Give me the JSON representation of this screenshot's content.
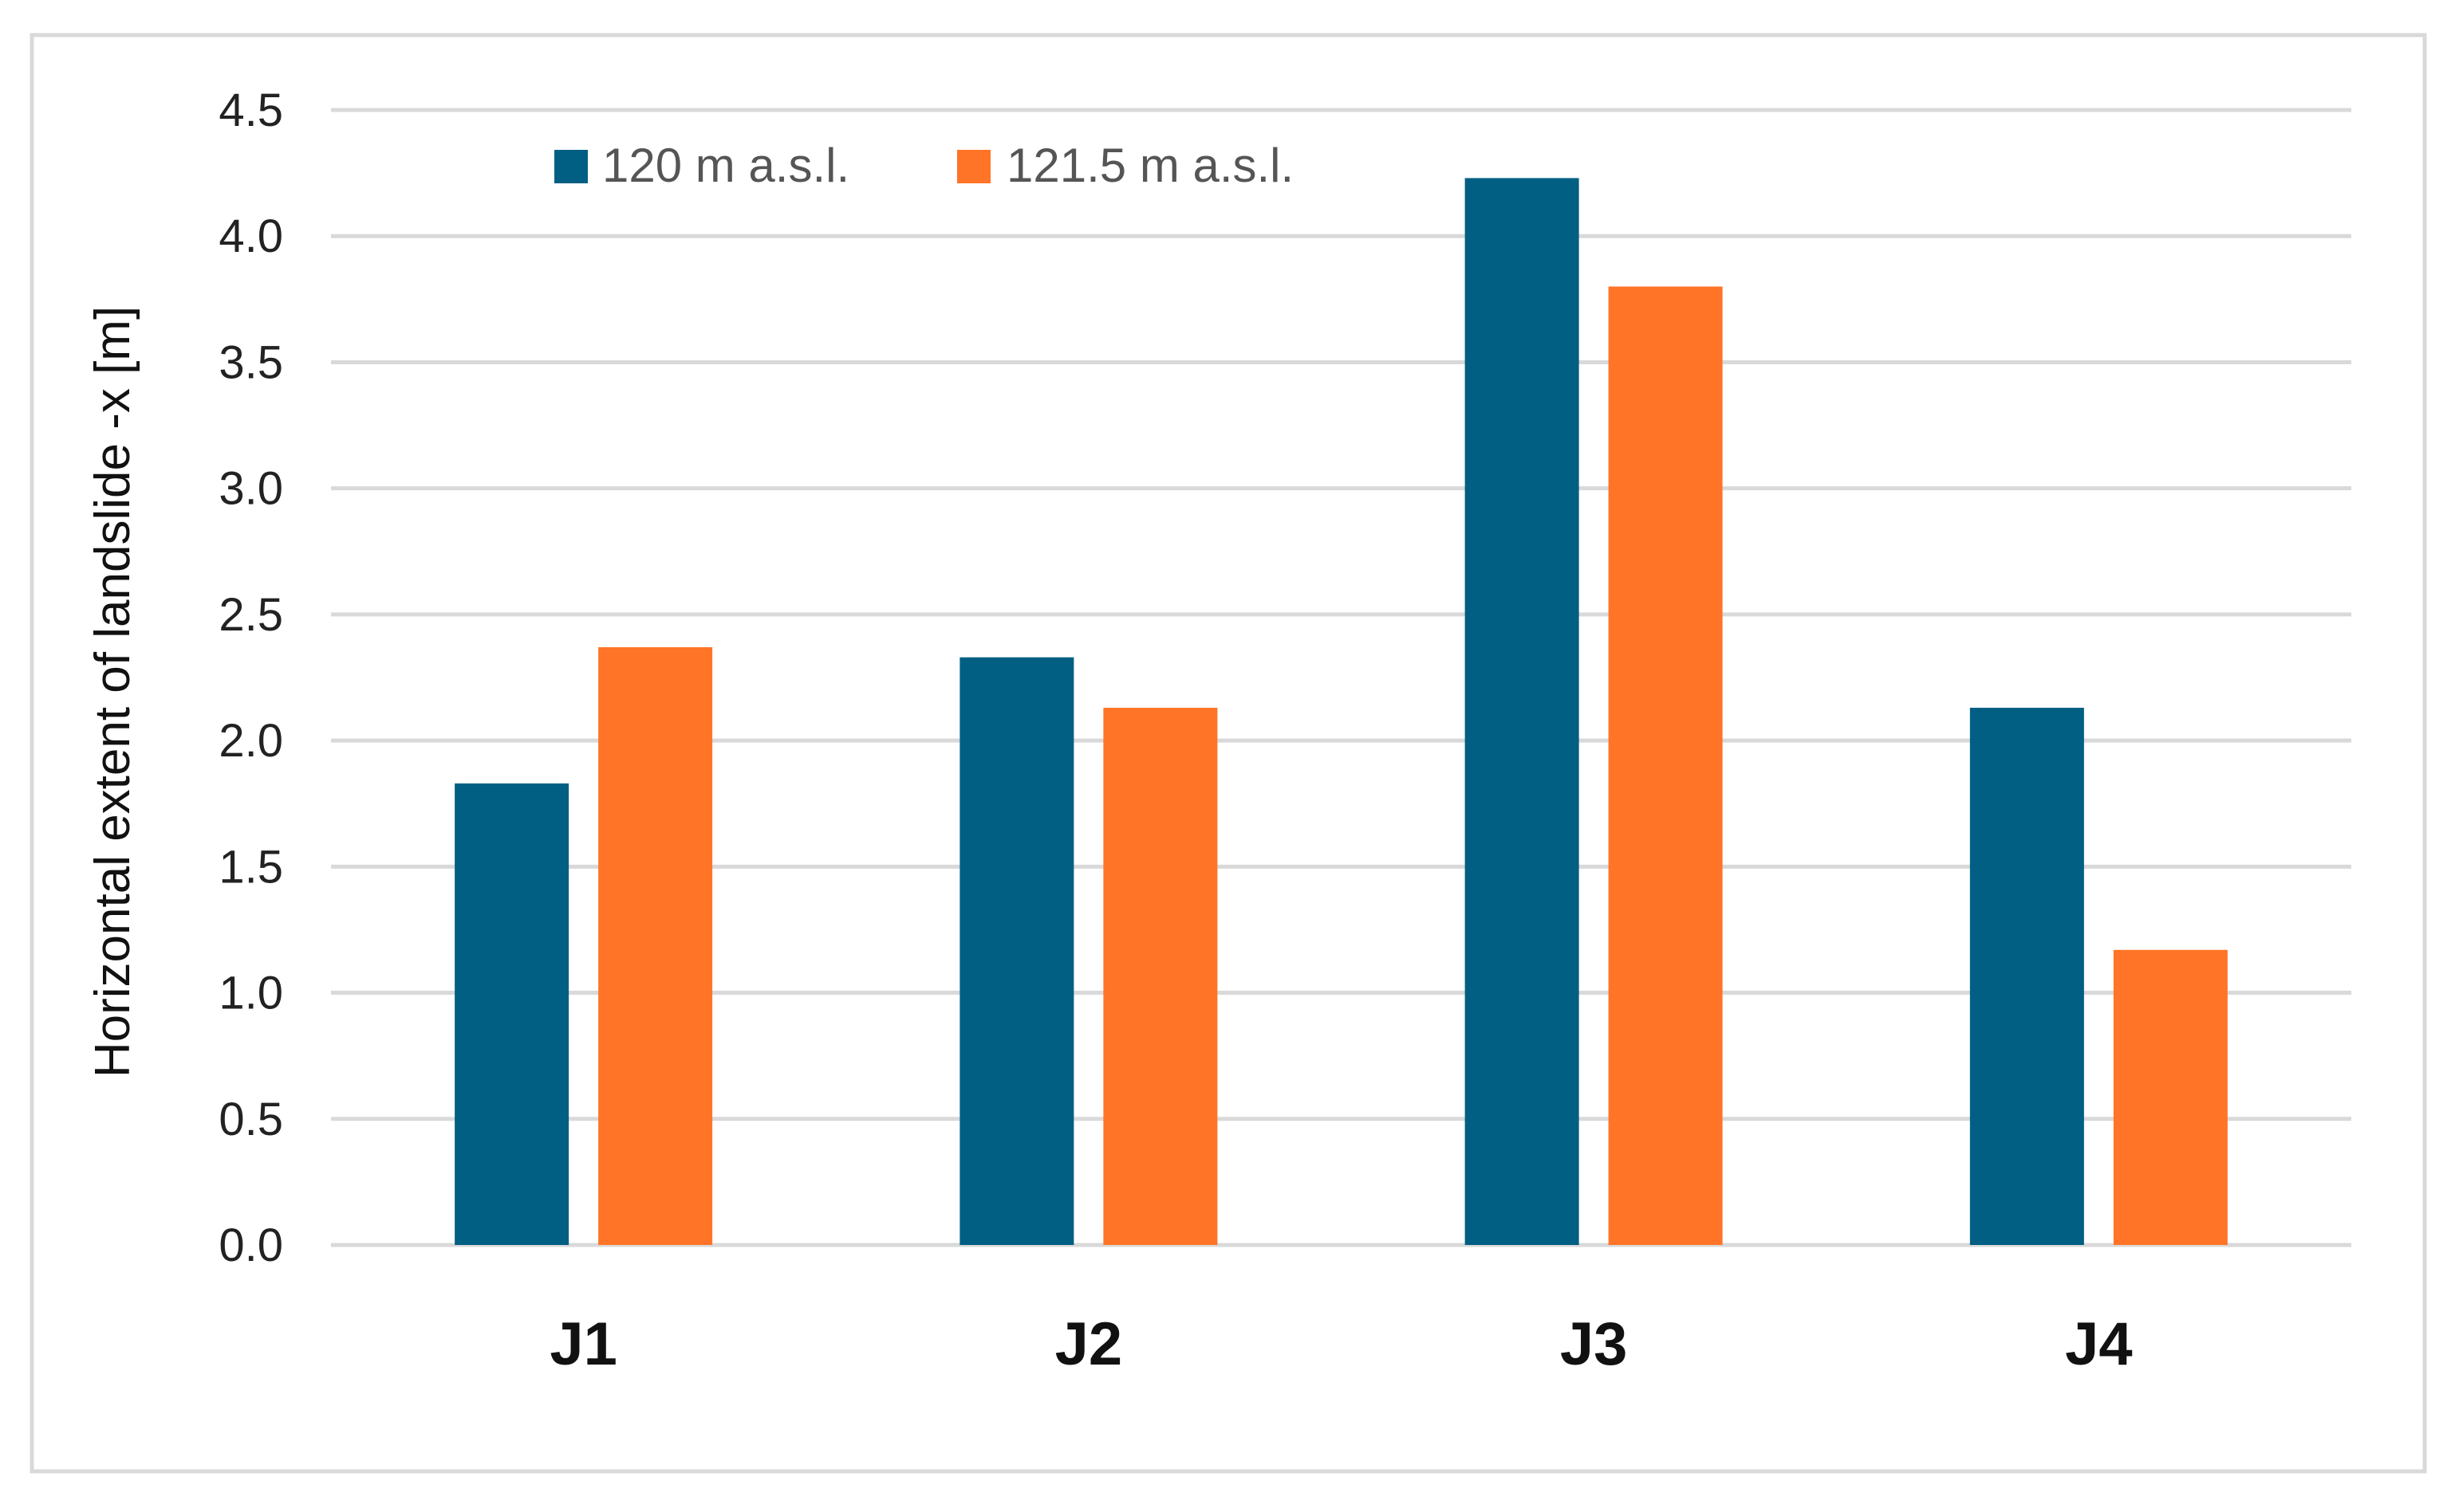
{
  "chart_data": {
    "type": "bar",
    "title": "",
    "xlabel": "",
    "ylabel": "Horizontal extent of landslide -x [m]",
    "categories": [
      "J1",
      "J2",
      "J3",
      "J4"
    ],
    "series": [
      {
        "name": "120 m a.s.l.",
        "color": "#005f83",
        "values": [
          1.83,
          2.33,
          4.23,
          2.13
        ]
      },
      {
        "name": "121.5 m a.s.l.",
        "color": "#ff7427",
        "values": [
          2.37,
          2.13,
          3.8,
          1.17
        ]
      }
    ],
    "ylim": [
      0,
      4.5
    ],
    "ytick_labels": [
      "0.0",
      "0.5",
      "1.0",
      "1.5",
      "2.0",
      "2.5",
      "3.0",
      "3.5",
      "4.0",
      "4.5"
    ],
    "grid": true,
    "legend_position": "top-left"
  }
}
